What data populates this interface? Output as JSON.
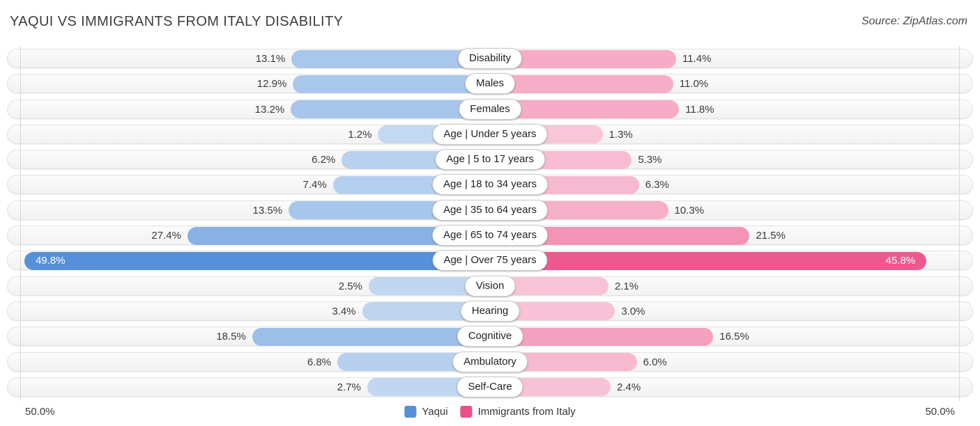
{
  "title": "YAQUI VS IMMIGRANTS FROM ITALY DISABILITY",
  "source": "Source: ZipAtlas.com",
  "axis": {
    "left_label": "50.0%",
    "right_label": "50.0%",
    "max_percent": 50
  },
  "legend": {
    "items": [
      {
        "label": "Yaqui",
        "color": "#5590d8"
      },
      {
        "label": "Immigrants from Italy",
        "color": "#ec4f88"
      }
    ]
  },
  "colors": {
    "blue_strong": "#5590d8",
    "blue_light": "#c6daf2",
    "pink_strong": "#ec4f88",
    "pink_light": "#f9c8da",
    "track": "#f5f5f5",
    "gridline": "#d7d7d7"
  },
  "chart_data": {
    "type": "bar",
    "orientation": "bidirectional-horizontal",
    "title": "YAQUI VS IMMIGRANTS FROM ITALY DISABILITY",
    "categories": [
      "Disability",
      "Males",
      "Females",
      "Age | Under 5 years",
      "Age | 5 to 17 years",
      "Age | 18 to 34 years",
      "Age | 35 to 64 years",
      "Age | 65 to 74 years",
      "Age | Over 75 years",
      "Vision",
      "Hearing",
      "Cognitive",
      "Ambulatory",
      "Self-Care"
    ],
    "series": [
      {
        "name": "Yaqui",
        "side": "left",
        "values": [
          13.1,
          12.9,
          13.2,
          1.2,
          6.2,
          7.4,
          13.5,
          27.4,
          49.8,
          2.5,
          3.4,
          18.5,
          6.8,
          2.7
        ],
        "labels": [
          "13.1%",
          "12.9%",
          "13.2%",
          "1.2%",
          "6.2%",
          "7.4%",
          "13.5%",
          "27.4%",
          "49.8%",
          "2.5%",
          "3.4%",
          "18.5%",
          "6.8%",
          "2.7%"
        ]
      },
      {
        "name": "Immigrants from Italy",
        "side": "right",
        "values": [
          11.4,
          11.0,
          11.8,
          1.3,
          5.3,
          6.3,
          10.3,
          21.5,
          45.8,
          2.1,
          3.0,
          16.5,
          6.0,
          2.4
        ],
        "labels": [
          "11.4%",
          "11.0%",
          "11.8%",
          "1.3%",
          "5.3%",
          "6.3%",
          "10.3%",
          "21.5%",
          "45.8%",
          "2.1%",
          "3.0%",
          "16.5%",
          "6.0%",
          "2.4%"
        ]
      }
    ],
    "xlim": [
      -50,
      50
    ],
    "x_tick_labels": [
      "50.0%",
      "50.0%"
    ],
    "grid": "two vertical gridlines at -50% and +50%",
    "legend_position": "bottom-center"
  }
}
